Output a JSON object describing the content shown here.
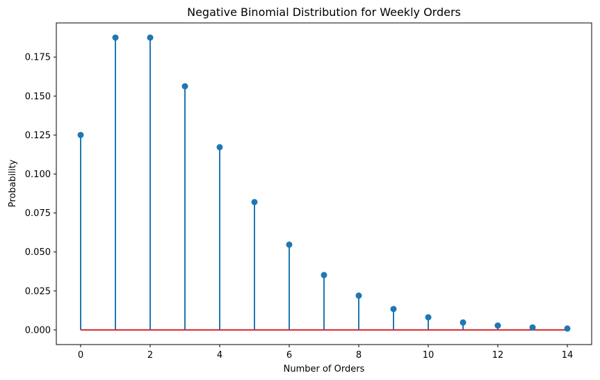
{
  "chart_data": {
    "type": "stem",
    "title": "Negative Binomial Distribution for Weekly Orders",
    "xlabel": "Number of Orders",
    "ylabel": "Probability",
    "xlim": [
      -0.7,
      14.7
    ],
    "ylim": [
      -0.0094,
      0.1969
    ],
    "x_ticks": [
      0,
      2,
      4,
      6,
      8,
      10,
      12,
      14
    ],
    "x_tick_labels": [
      "0",
      "2",
      "4",
      "6",
      "8",
      "10",
      "12",
      "14"
    ],
    "y_ticks": [
      0.0,
      0.025,
      0.05,
      0.075,
      0.1,
      0.125,
      0.15,
      0.175
    ],
    "y_tick_labels": [
      "0.000",
      "0.025",
      "0.050",
      "0.075",
      "0.100",
      "0.125",
      "0.150",
      "0.175"
    ],
    "grid": false,
    "series": [
      {
        "x": [
          0,
          1,
          2,
          3,
          4,
          5,
          6,
          7,
          8,
          9,
          10,
          11,
          12,
          13,
          14
        ],
        "values": [
          0.125,
          0.1875,
          0.1875,
          0.15625,
          0.1172,
          0.082,
          0.0547,
          0.0352,
          0.022,
          0.0134,
          0.0081,
          0.0048,
          0.0028,
          0.0016,
          0.0009
        ]
      }
    ],
    "colors": {
      "stem": "#1f77b4",
      "marker": "#1f77b4",
      "baseline": "#d62728",
      "axes": "#000000"
    }
  }
}
